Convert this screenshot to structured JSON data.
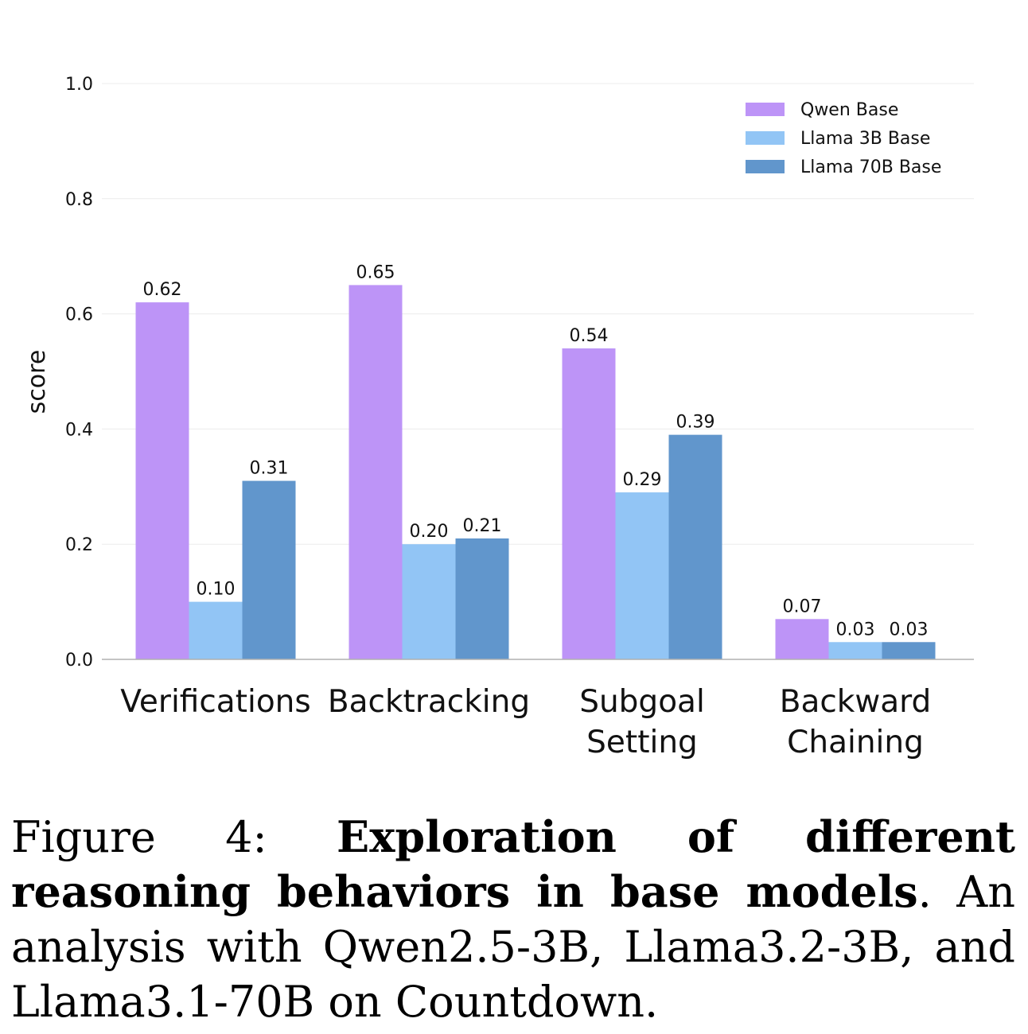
{
  "chart_data": {
    "type": "bar",
    "categories": [
      "Verifications",
      "Backtracking",
      "Subgoal Setting",
      "Backward Chaining"
    ],
    "category_lines": [
      [
        "Verifications"
      ],
      [
        "Backtracking"
      ],
      [
        "Subgoal",
        "Setting"
      ],
      [
        "Backward",
        "Chaining"
      ]
    ],
    "series": [
      {
        "name": "Qwen Base",
        "color": "#bd94f7",
        "values": [
          0.62,
          0.65,
          0.54,
          0.07
        ],
        "labels": [
          "0.62",
          "0.65",
          "0.54",
          "0.07"
        ]
      },
      {
        "name": "Llama 3B Base",
        "color": "#92c5f5",
        "values": [
          0.1,
          0.2,
          0.29,
          0.03
        ],
        "labels": [
          "0.10",
          "0.20",
          "0.29",
          "0.03"
        ]
      },
      {
        "name": "Llama 70B Base",
        "color": "#6196cc",
        "values": [
          0.31,
          0.21,
          0.39,
          0.03
        ],
        "labels": [
          "0.31",
          "0.21",
          "0.39",
          "0.03"
        ]
      }
    ],
    "ylabel": "score",
    "xlabel": "",
    "ylim": [
      0,
      1.0
    ],
    "yticks": [
      "0.0",
      "0.2",
      "0.4",
      "0.6",
      "0.8",
      "1.0"
    ],
    "grid": true,
    "legend_position": "top-right"
  },
  "caption": {
    "prefix": "Figure 4: ",
    "bold": "Exploration of different reasoning behaviors in base models",
    "rest": ". An analysis with Qwen2.5-3B, Llama3.2-3B, and Llama3.1-70B on Countdown."
  }
}
